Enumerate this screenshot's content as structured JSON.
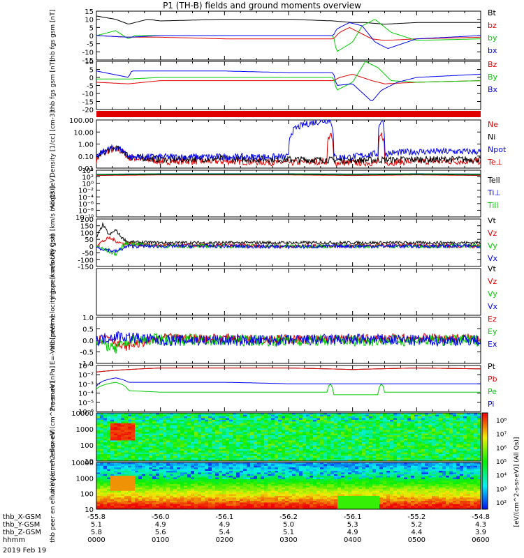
{
  "title": "P1 (TH-B) fields and ground moments overview",
  "date_label": "2019 Feb 19",
  "colors": {
    "black": "#000000",
    "red": "#e00000",
    "green": "#00cc00",
    "blue": "#0000ee"
  },
  "chart_data": [
    {
      "type": "line",
      "ylabel": "thb fgs gsm [nT]",
      "ylim": [
        -15,
        15
      ],
      "yticks": [
        "15",
        "10",
        "5",
        "0",
        "-5",
        "-10",
        "-15"
      ],
      "series": [
        {
          "name": "Bt",
          "color": "black",
          "x": [
            0,
            0.3,
            0.5,
            0.8,
            1,
            2,
            3,
            3.7,
            4,
            4.2,
            4.5,
            5,
            6
          ],
          "y": [
            12,
            10,
            7,
            10,
            9,
            10,
            10,
            9,
            8,
            8,
            7,
            8,
            8
          ]
        },
        {
          "name": "bz",
          "color": "red",
          "x": [
            0,
            0.5,
            1,
            2,
            3,
            3.7,
            3.8,
            3.95,
            4.1,
            4.3,
            4.5,
            5,
            6
          ],
          "y": [
            0,
            -1,
            -1,
            -2,
            -2,
            -2,
            2,
            5,
            2,
            -2,
            -3,
            -2,
            -1
          ]
        },
        {
          "name": "by",
          "color": "green",
          "x": [
            0,
            0.3,
            0.5,
            0.6,
            1,
            2,
            3,
            3.7,
            3.75,
            4,
            4.15,
            4.35,
            4.6,
            5,
            6
          ],
          "y": [
            0,
            3,
            -2,
            0,
            0,
            0,
            0,
            0,
            -10,
            -4,
            6,
            10,
            2,
            -3,
            -2
          ]
        },
        {
          "name": "bx",
          "color": "blue",
          "x": [
            0,
            0.5,
            1,
            2,
            3,
            3.7,
            3.75,
            3.95,
            4.15,
            4.35,
            4.55,
            5,
            6
          ],
          "y": [
            0,
            -1,
            0,
            0,
            0,
            0,
            4,
            8,
            6,
            -4,
            -8,
            -2,
            0
          ]
        }
      ]
    },
    {
      "type": "line",
      "ylabel": "thb fgs gsm [nT]",
      "ylim": [
        -20,
        10
      ],
      "yticks": [
        "10",
        "5",
        "0",
        "-5",
        "-10",
        "-15",
        "-20"
      ],
      "series": [
        {
          "name": "Bz",
          "color": "red",
          "x": [
            0,
            0.5,
            1,
            2,
            3,
            3.7,
            3.8,
            4,
            4.3,
            4.5,
            5,
            6
          ],
          "y": [
            -3,
            -4,
            -2,
            -2,
            -2,
            -2,
            0,
            2,
            -2,
            -4,
            -3,
            -2
          ]
        },
        {
          "name": "By",
          "color": "green",
          "x": [
            0,
            0.5,
            1,
            2,
            3,
            3.7,
            3.75,
            4,
            4.2,
            4.4,
            4.6,
            5,
            6
          ],
          "y": [
            -1,
            -1,
            0,
            0,
            0,
            0,
            -8,
            -3,
            10,
            6,
            -2,
            -3,
            -2
          ]
        },
        {
          "name": "Bx",
          "color": "blue",
          "x": [
            0,
            0.5,
            0.55,
            1,
            2,
            3,
            3.7,
            3.75,
            4,
            4.3,
            4.45,
            4.7,
            5,
            6
          ],
          "y": [
            4,
            0,
            4,
            4,
            4,
            3,
            3,
            -5,
            -4,
            -15,
            -8,
            -3,
            0,
            2
          ]
        }
      ]
    },
    {
      "type": "line",
      "ylabel": "Density [1/cc] [cm-3]",
      "yscale": "log",
      "ylim": [
        0.01,
        200
      ],
      "yticks": [
        "100.00",
        "10.00",
        "1.00",
        "0.10",
        "0.01"
      ],
      "series": [
        {
          "name": "Ne",
          "color": "red",
          "x": [
            0,
            0.3,
            0.5,
            1,
            2,
            3,
            3.6,
            3.65,
            3.7,
            4,
            4.4,
            4.45,
            4.5,
            5,
            6
          ],
          "y": [
            0.05,
            0.5,
            0.08,
            0.04,
            0.04,
            0.03,
            0.04,
            10,
            0.03,
            0.03,
            0.03,
            10,
            0.03,
            0.04,
            0.04
          ]
        },
        {
          "name": "Ni",
          "color": "black",
          "x": [
            0,
            0.3,
            0.5,
            1,
            2,
            3,
            4,
            5,
            6
          ],
          "y": [
            0.06,
            0.6,
            0.1,
            0.06,
            0.07,
            0.06,
            0.05,
            0.06,
            0.06
          ]
        },
        {
          "name": "Npot",
          "color": "blue",
          "x": [
            0,
            0.3,
            0.5,
            1,
            2,
            3,
            3.65,
            3.7,
            4,
            4.4,
            4.45,
            4.5,
            5,
            6
          ],
          "y": [
            0.06,
            0.7,
            0.1,
            0.1,
            0.1,
            0.1,
            200,
            0.1,
            0.1,
            0.2,
            200,
            0.2,
            0.3,
            0.3
          ]
        }
      ]
    },
    {
      "type": "line",
      "ylabel": "moqt3 [eV]",
      "yscale": "log",
      "ylim": [
        1e-10,
        100000.0
      ],
      "yticks": [
        "10⁴",
        "10²",
        "10⁰",
        "10⁻²",
        "10⁻⁴",
        "10⁻⁶",
        "10⁻⁸",
        "10⁻¹⁰"
      ],
      "series": [
        {
          "name": "Te⊥",
          "color": "red",
          "x": [
            0,
            1,
            2,
            3,
            4,
            5,
            6
          ],
          "y": [
            2000,
            3000,
            3000,
            3000,
            2000,
            3000,
            2000
          ]
        },
        {
          "name": "Tell",
          "color": "black",
          "x": [
            0,
            1,
            2,
            3,
            4,
            5,
            6
          ],
          "y": [
            3000,
            4000,
            4000,
            4000,
            3000,
            4000,
            3000
          ]
        },
        {
          "name": "Ti⊥",
          "color": "blue",
          "x": [
            0,
            1,
            2,
            3,
            4,
            5,
            6
          ],
          "y": [
            5000,
            8000,
            8000,
            8000,
            6000,
            8000,
            6000
          ]
        },
        {
          "name": "Till",
          "color": "green",
          "x": [
            0,
            1,
            2,
            3,
            4,
            5,
            6
          ],
          "y": [
            4000,
            7000,
            7000,
            7000,
            5000,
            7000,
            5000
          ]
        }
      ]
    },
    {
      "type": "line",
      "ylabel": "thb peir velocity gsm [km/s (All Qs)]",
      "ylim": [
        -150,
        200
      ],
      "yticks": [
        "200",
        "150",
        "100",
        "50",
        "0",
        "-50",
        "-100",
        "-150"
      ],
      "series": [
        {
          "name": "Vt",
          "color": "black",
          "x": [
            0,
            0.1,
            0.2,
            0.3,
            0.4,
            0.5,
            1,
            2,
            3,
            4,
            5,
            6
          ],
          "y": [
            60,
            160,
            80,
            120,
            60,
            30,
            25,
            25,
            25,
            25,
            25,
            25
          ]
        },
        {
          "name": "Vz",
          "color": "red",
          "x": [
            0,
            0.2,
            0.4,
            1,
            2,
            3,
            4,
            5,
            6
          ],
          "y": [
            10,
            60,
            20,
            5,
            5,
            0,
            5,
            5,
            0
          ]
        },
        {
          "name": "Vy",
          "color": "green",
          "x": [
            0,
            0.3,
            0.45,
            1,
            2,
            3,
            4,
            5,
            6
          ],
          "y": [
            0,
            -60,
            20,
            0,
            0,
            0,
            0,
            0,
            0
          ]
        },
        {
          "name": "Vx",
          "color": "blue",
          "x": [
            0,
            0.3,
            0.5,
            1,
            2,
            3,
            4,
            5,
            6
          ],
          "y": [
            -10,
            -40,
            0,
            0,
            0,
            -5,
            0,
            0,
            0
          ]
        }
      ]
    },
    {
      "type": "line",
      "ylabel": "thb peer velocity gsm [km/s (All Qs)]",
      "empty": true,
      "series": [
        {
          "name": "Vt",
          "color": "black",
          "x": [],
          "y": []
        },
        {
          "name": "Vz",
          "color": "red",
          "x": [],
          "y": []
        },
        {
          "name": "Vy",
          "color": "green",
          "x": [],
          "y": []
        },
        {
          "name": "Vx",
          "color": "blue",
          "x": [],
          "y": []
        }
      ]
    },
    {
      "type": "line",
      "ylabel": "E=-VxB [mV/m]",
      "ylim": [
        -1,
        1
      ],
      "yticks": [
        "1.0",
        "0.5",
        "0.0",
        "-0.5",
        "-1.0"
      ],
      "series": [
        {
          "name": "Ez",
          "color": "red",
          "x": [
            0,
            0.2,
            0.4,
            1,
            2,
            3,
            4,
            5,
            6
          ],
          "y": [
            0,
            0.2,
            -0.3,
            0.1,
            0.1,
            0.05,
            0.05,
            0.1,
            0.1
          ]
        },
        {
          "name": "Ey",
          "color": "green",
          "x": [
            0,
            0.3,
            0.5,
            1,
            2,
            3,
            4,
            5,
            6
          ],
          "y": [
            0,
            -0.4,
            0,
            0.05,
            0,
            0,
            0,
            0,
            0
          ]
        },
        {
          "name": "Ex",
          "color": "blue",
          "x": [
            0,
            0.3,
            1,
            2,
            3,
            4,
            5,
            6
          ],
          "y": [
            0,
            0.2,
            0,
            0,
            0,
            0.05,
            0,
            0
          ]
        }
      ]
    },
    {
      "type": "line",
      "ylabel": "Pressure [nPa]",
      "yscale": "log",
      "ylim": [
        1e-06,
        0.3
      ],
      "yticks": [
        "10⁻¹",
        "10⁻²",
        "10⁻³",
        "10⁻⁴",
        "10⁻⁵",
        "10⁻⁶"
      ],
      "series": [
        {
          "name": "Pt",
          "color": "black",
          "x": [
            0,
            0.5,
            1,
            2,
            3,
            4,
            5,
            6
          ],
          "y": [
            0.05,
            0.1,
            0.15,
            0.15,
            0.15,
            0.1,
            0.15,
            0.12
          ]
        },
        {
          "name": "Pb",
          "color": "red",
          "x": [
            0,
            0.5,
            1,
            2,
            3,
            4,
            5,
            6
          ],
          "y": [
            0.05,
            0.1,
            0.15,
            0.15,
            0.15,
            0.1,
            0.15,
            0.12
          ]
        },
        {
          "name": "Pe",
          "color": "green",
          "x": [
            0,
            0.3,
            0.5,
            1,
            2,
            3,
            3.6,
            3.65,
            3.7,
            4,
            4.4,
            4.45,
            4.5,
            5,
            6
          ],
          "y": [
            0.0005,
            0.003,
            0.0003,
            0.0002,
            0.0002,
            0.0002,
            0.0002,
            0.002,
            0.0001,
            0.0001,
            0.0001,
            0.002,
            0.0002,
            0.0002,
            0.0002
          ]
        },
        {
          "name": "Pi",
          "color": "blue",
          "x": [
            0,
            0.3,
            0.5,
            1,
            2,
            3,
            4,
            5,
            6
          ],
          "y": [
            0.001,
            0.01,
            0.003,
            0.003,
            0.003,
            0.002,
            0.002,
            0.002,
            0.002
          ]
        }
      ]
    },
    {
      "type": "heatmap",
      "ylabel": "thb peir en eflux eV (cm^2-s-sr-eV)",
      "yscale": "log",
      "ylim": [
        5,
        30000
      ],
      "yticks": [
        "10000",
        "1000",
        "100",
        "10"
      ]
    },
    {
      "type": "heatmap",
      "ylabel": "thb peer en eflux eV (cm^2-s-sr-eV)",
      "yscale": "log",
      "ylim": [
        5,
        30000
      ],
      "yticks": [
        "10000",
        "1000",
        "100",
        "10"
      ]
    }
  ],
  "colorbar": {
    "ticks": [
      "10⁸",
      "10⁷",
      "10⁶",
      "10⁵",
      "10⁴",
      "10³",
      "10²"
    ],
    "label": "[eV/(cm^2-s-sr-eV)] (All Qs)]"
  },
  "legend_names": [
    [
      "Bt",
      "bz",
      "by",
      "bx"
    ],
    [
      "Bz",
      "By",
      "Bx"
    ],
    [
      "Ne",
      "Ni",
      "Npot",
      "Te⊥"
    ],
    [
      "Tell",
      "Ti⊥",
      "Till"
    ],
    [
      "Vt",
      "Vz",
      "Vy",
      "Vx"
    ],
    [
      "Vt",
      "Vz",
      "Vy",
      "Vx"
    ],
    [
      "Ez",
      "Ey",
      "Ex"
    ],
    [
      "Pt",
      "Pb",
      "Pe",
      "Pi"
    ]
  ],
  "xaxis": {
    "rows": [
      {
        "label": "thb_X-GSM",
        "values": [
          "-55.8",
          "-56.0",
          "-56.1",
          "-56.2",
          "-56.1",
          "-55.2",
          "-54.8"
        ]
      },
      {
        "label": "thb_Y-GSM",
        "values": [
          "5.1",
          "4.9",
          "4.9",
          "5.0",
          "5.3",
          "5.2",
          "4.3"
        ]
      },
      {
        "label": "thb_Z-GSM",
        "values": [
          "5.8",
          "5.6",
          "5.4",
          "5.1",
          "4.9",
          "4.4",
          "3.9"
        ]
      },
      {
        "label": "hhmm",
        "values": [
          "0000",
          "0100",
          "0200",
          "0300",
          "0400",
          "0500",
          "0600"
        ]
      }
    ]
  }
}
